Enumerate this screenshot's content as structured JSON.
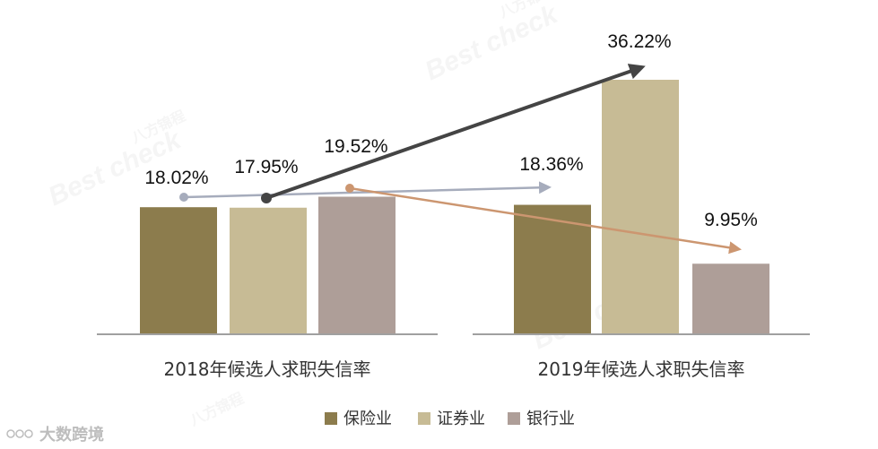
{
  "chart_data": {
    "type": "bar",
    "groups": [
      {
        "label": "2018年候选人求职失信率",
        "values": [
          18.02,
          17.95,
          19.52
        ],
        "value_labels": [
          "18.02%",
          "17.95%",
          "19.52%"
        ]
      },
      {
        "label": "2019年候选人求职失信率",
        "values": [
          18.36,
          36.22,
          9.95
        ],
        "value_labels": [
          "18.36%",
          "36.22%",
          "9.95%"
        ]
      }
    ],
    "series": [
      {
        "name": "保险业",
        "color": "#8c7c4d",
        "arrow_color": "#a6acbc"
      },
      {
        "name": "证券业",
        "color": "#c7bb95",
        "arrow_color": "#444444"
      },
      {
        "name": "银行业",
        "color": "#ae9e98",
        "arrow_color": "#cc9670"
      }
    ],
    "legend_position": "bottom",
    "grid": false
  },
  "watermarks": [
    "八方锦程",
    "Best check",
    "大数跨境"
  ]
}
